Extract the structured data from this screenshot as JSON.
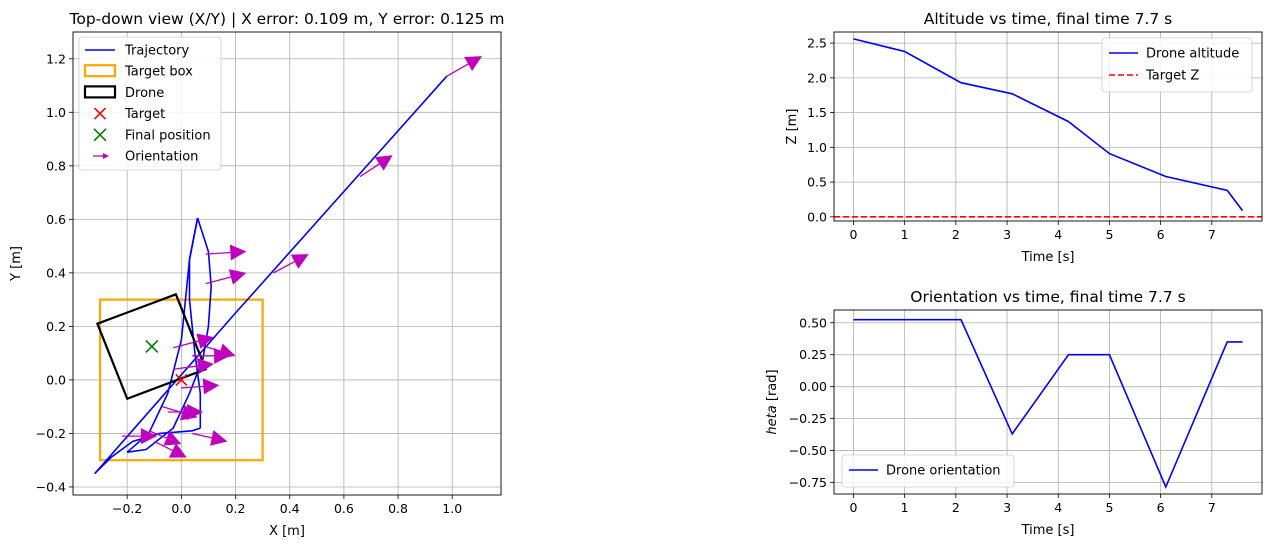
{
  "colors": {
    "trajectory": "#0000ff",
    "target_box": "#ffa500",
    "drone": "#000000",
    "target": "#ff0000",
    "final_position": "#008000",
    "orientation": "#bf00bf",
    "target_z": "#ff0000"
  },
  "chart_data": [
    {
      "type": "line",
      "title": "Top-down view (X/Y) | X error: 0.109 m, Y error: 0.125 m",
      "xlabel": "X [m]",
      "ylabel": "Y [m]",
      "xlim": [
        -0.4,
        1.18
      ],
      "ylim": [
        -0.43,
        1.3
      ],
      "xticks": [
        -0.2,
        0.0,
        0.2,
        0.4,
        0.6,
        0.8,
        1.0
      ],
      "xtick_labels": [
        "−0.2",
        "0.0",
        "0.2",
        "0.4",
        "0.6",
        "0.8",
        "1.0"
      ],
      "yticks": [
        -0.4,
        -0.2,
        0.0,
        0.2,
        0.4,
        0.6,
        0.8,
        1.0,
        1.2
      ],
      "ytick_labels": [
        "−0.4",
        "−0.2",
        "0.0",
        "0.2",
        "0.4",
        "0.6",
        "0.8",
        "1.0",
        "1.2"
      ],
      "grid": true,
      "legend_position": "top-left",
      "legend": [
        "Trajectory",
        "Target box",
        "Drone",
        "Target",
        "Final position",
        "Orientation"
      ],
      "trajectories": [
        [
          [
            -0.32,
            -0.35
          ],
          [
            -0.26,
            -0.29
          ],
          [
            -0.18,
            -0.23
          ],
          [
            -0.08,
            -0.2
          ],
          [
            0.04,
            -0.19
          ],
          [
            0.07,
            -0.18
          ]
        ],
        [
          [
            0.07,
            -0.18
          ],
          [
            0.07,
            -0.05
          ],
          [
            0.05,
            0.1
          ],
          [
            0.03,
            0.3
          ],
          [
            0.03,
            0.45
          ],
          [
            0.06,
            0.605
          ]
        ],
        [
          [
            0.06,
            0.605
          ],
          [
            0.1,
            0.48
          ],
          [
            0.11,
            0.35
          ],
          [
            0.1,
            0.2
          ],
          [
            0.08,
            0.08
          ],
          [
            0.03,
            -0.05
          ],
          [
            -0.03,
            -0.18
          ],
          [
            -0.13,
            -0.26
          ],
          [
            -0.2,
            -0.27
          ]
        ],
        [
          [
            -0.2,
            -0.27
          ],
          [
            -0.12,
            -0.2
          ],
          [
            -0.05,
            -0.05
          ],
          [
            0.0,
            0.15
          ],
          [
            0.03,
            0.45
          ],
          [
            0.06,
            0.605
          ]
        ],
        [
          [
            -0.32,
            -0.35
          ],
          [
            0.2,
            0.25
          ],
          [
            0.98,
            1.135
          ]
        ]
      ],
      "target_box": {
        "x": [
          -0.3,
          0.3
        ],
        "y": [
          -0.3,
          0.3
        ]
      },
      "drone_box": [
        [
          -0.31,
          0.21
        ],
        [
          -0.02,
          0.32
        ],
        [
          0.09,
          0.04
        ],
        [
          -0.2,
          -0.07
        ]
      ],
      "target": {
        "x": 0.0,
        "y": 0.0
      },
      "final_position": {
        "x": -0.109,
        "y": 0.125
      },
      "orientation_arrows": [
        {
          "x": 0.98,
          "y": 1.135,
          "dx": 0.13,
          "dy": 0.075
        },
        {
          "x": 0.66,
          "y": 0.76,
          "dx": 0.12,
          "dy": 0.08
        },
        {
          "x": 0.34,
          "y": 0.4,
          "dx": 0.13,
          "dy": 0.07
        },
        {
          "x": 0.09,
          "y": 0.47,
          "dx": 0.15,
          "dy": 0.01
        },
        {
          "x": 0.09,
          "y": 0.36,
          "dx": 0.15,
          "dy": 0.04
        },
        {
          "x": -0.03,
          "y": 0.12,
          "dx": 0.15,
          "dy": 0.04
        },
        {
          "x": 0.07,
          "y": 0.13,
          "dx": 0.13,
          "dy": -0.04
        },
        {
          "x": 0.04,
          "y": 0.09,
          "dx": 0.14,
          "dy": 0.0
        },
        {
          "x": -0.03,
          "y": 0.04,
          "dx": 0.15,
          "dy": 0.02
        },
        {
          "x": 0.0,
          "y": -0.03,
          "dx": 0.14,
          "dy": 0.01
        },
        {
          "x": -0.07,
          "y": -0.1,
          "dx": 0.13,
          "dy": -0.04
        },
        {
          "x": -0.05,
          "y": -0.12,
          "dx": 0.13,
          "dy": 0.0
        },
        {
          "x": 0.04,
          "y": -0.2,
          "dx": 0.13,
          "dy": -0.03
        },
        {
          "x": -0.22,
          "y": -0.21,
          "dx": 0.13,
          "dy": 0.0
        },
        {
          "x": -0.12,
          "y": -0.19,
          "dx": 0.12,
          "dy": -0.05
        },
        {
          "x": -0.1,
          "y": -0.23,
          "dx": 0.12,
          "dy": -0.06
        }
      ]
    },
    {
      "type": "line",
      "title": "Altitude vs time, final time 7.7 s",
      "xlabel": "Time [s]",
      "ylabel": "Z [m]",
      "xlim": [
        -0.38,
        7.98
      ],
      "ylim": [
        -0.06,
        2.66
      ],
      "xticks": [
        0,
        1,
        2,
        3,
        4,
        5,
        6,
        7
      ],
      "xtick_labels": [
        "0",
        "1",
        "2",
        "3",
        "4",
        "5",
        "6",
        "7"
      ],
      "yticks": [
        0.0,
        0.5,
        1.0,
        1.5,
        2.0,
        2.5
      ],
      "ytick_labels": [
        "0.0",
        "0.5",
        "1.0",
        "1.5",
        "2.0",
        "2.5"
      ],
      "grid": true,
      "legend_position": "top-right",
      "series": [
        {
          "name": "Drone altitude",
          "x": [
            0,
            1,
            2.1,
            3.1,
            4.2,
            5,
            6.1,
            7.3,
            7.6
          ],
          "values": [
            2.56,
            2.38,
            1.93,
            1.77,
            1.37,
            0.91,
            0.58,
            0.38,
            0.09
          ]
        },
        {
          "name": "Target Z",
          "x": [
            -0.38,
            7.98
          ],
          "values": [
            0.0,
            0.0
          ]
        }
      ]
    },
    {
      "type": "line",
      "title": "Orientation vs time, final time 7.7 s",
      "xlabel": "Time [s]",
      "ylabel": "heta [rad]",
      "ylabel_math": "heta",
      "ylabel_unit": " [rad]",
      "xlim": [
        -0.38,
        7.98
      ],
      "ylim": [
        -0.84,
        0.6
      ],
      "xticks": [
        0,
        1,
        2,
        3,
        4,
        5,
        6,
        7
      ],
      "xtick_labels": [
        "0",
        "1",
        "2",
        "3",
        "4",
        "5",
        "6",
        "7"
      ],
      "yticks": [
        -0.75,
        -0.5,
        -0.25,
        0.0,
        0.25,
        0.5
      ],
      "ytick_labels": [
        "−0.75",
        "−0.50",
        "−0.25",
        "0.00",
        "0.25",
        "0.50"
      ],
      "grid": true,
      "legend_position": "bottom-left",
      "series": [
        {
          "name": "Drone orientation",
          "x": [
            0,
            1,
            2.1,
            3.1,
            4.2,
            5,
            6.1,
            7.3,
            7.6
          ],
          "values": [
            0.524,
            0.524,
            0.524,
            -0.37,
            0.25,
            0.25,
            -0.785,
            0.35,
            0.35
          ]
        }
      ]
    }
  ]
}
